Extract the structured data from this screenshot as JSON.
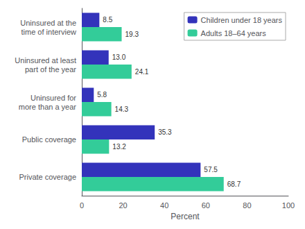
{
  "chart_data": {
    "type": "bar",
    "orientation": "horizontal",
    "categories": [
      "Private coverage",
      "Public coverage",
      "Uninsured for\nmore than a year",
      "Uninsured at least\npart of the year",
      "Uninsured at the\ntime of interview"
    ],
    "series": [
      {
        "name": "Children under 18 years",
        "color": "#3333bb",
        "values": [
          57.5,
          35.3,
          5.8,
          13.0,
          8.5
        ],
        "value_labels": [
          "57.5",
          "35.3",
          "5.8",
          "13.0",
          "8.5"
        ]
      },
      {
        "name": "Adults 18–64 years",
        "color": "#33cc99",
        "values": [
          68.7,
          13.2,
          14.3,
          24.1,
          19.3
        ],
        "value_labels": [
          "68.7",
          "13.2",
          "14.3",
          "24.1",
          "19.3"
        ]
      }
    ],
    "xlabel": "Percent",
    "xlim": [
      0,
      100
    ],
    "xticks": [
      0,
      20,
      40,
      60,
      80,
      100
    ],
    "grid": false,
    "legend": "upper right",
    "data_labels": true
  }
}
